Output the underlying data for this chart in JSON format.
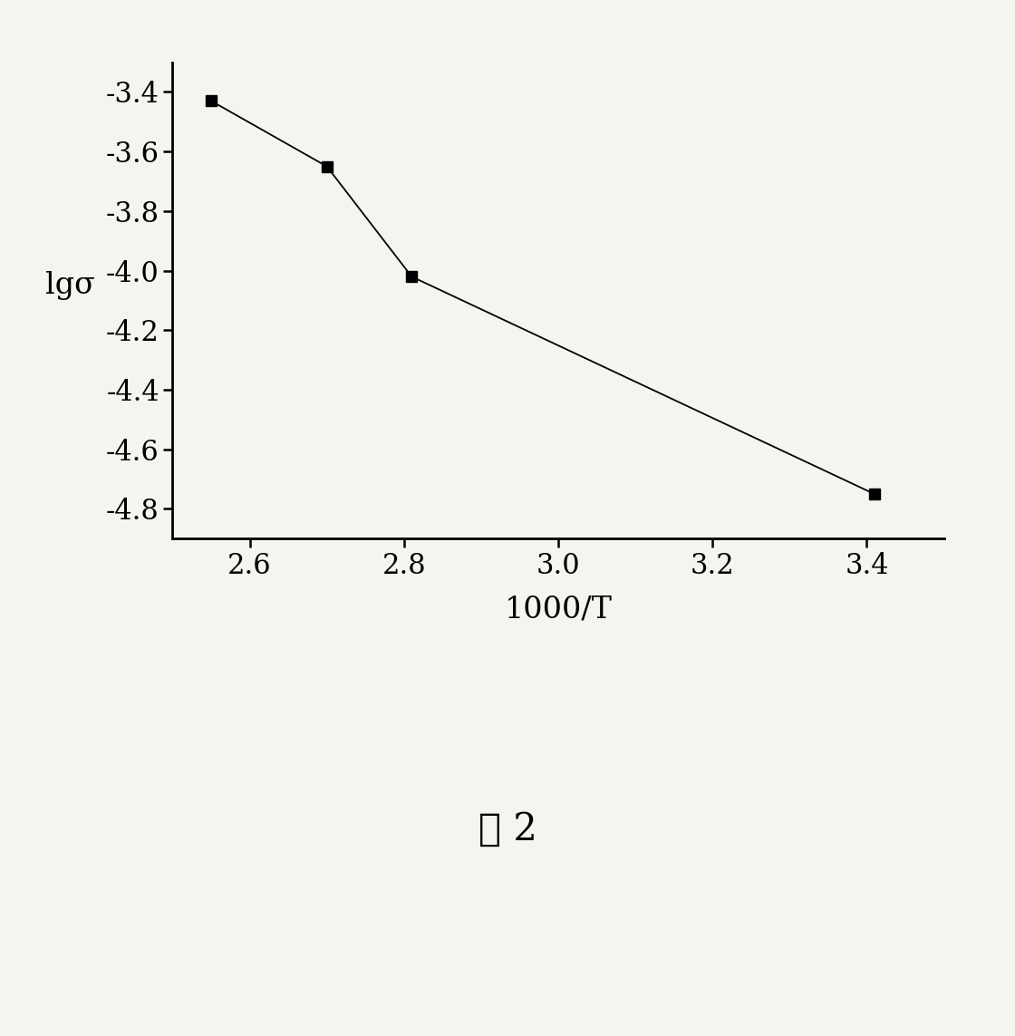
{
  "x": [
    2.55,
    2.7,
    2.81,
    3.41
  ],
  "y": [
    -3.43,
    -3.65,
    -4.02,
    -4.75
  ],
  "xlabel": "1000/T",
  "ylabel": "lgσ",
  "xlim": [
    2.5,
    3.5
  ],
  "ylim": [
    -4.9,
    -3.3
  ],
  "xticks": [
    2.6,
    2.8,
    3.0,
    3.2,
    3.4
  ],
  "yticks": [
    -3.4,
    -3.6,
    -3.8,
    -4.0,
    -4.2,
    -4.4,
    -4.6,
    -4.8
  ],
  "line_color": "#000000",
  "marker_color": "#000000",
  "marker": "s",
  "marker_size": 9,
  "line_width": 1.3,
  "caption": "图 2",
  "background_color": "#f5f5f0",
  "axis_label_fontsize": 24,
  "tick_fontsize": 22,
  "caption_fontsize": 30
}
